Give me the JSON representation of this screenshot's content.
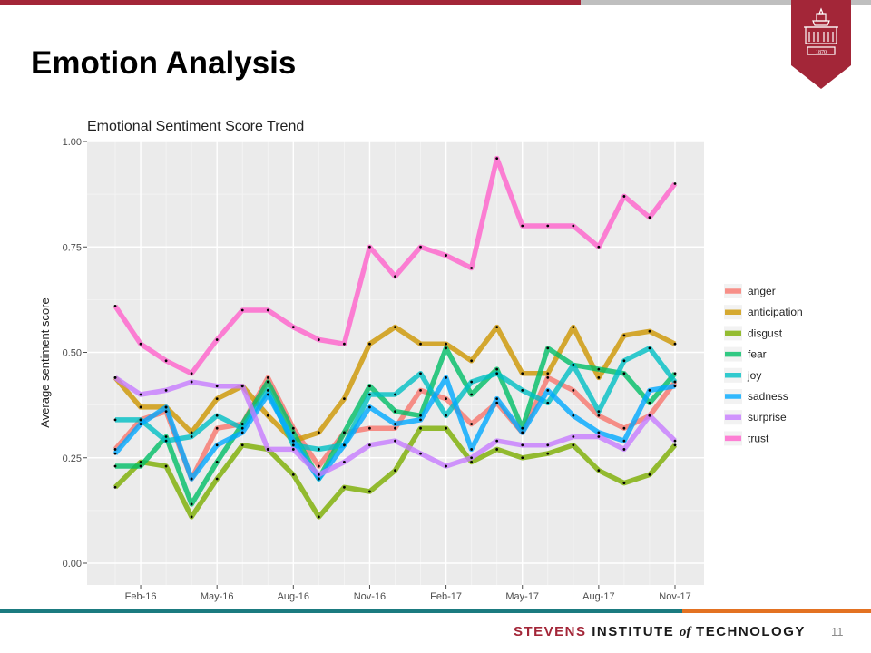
{
  "slide": {
    "title": "Emotion Analysis",
    "page_number": "11",
    "footer": {
      "word1": "STEVENS",
      "word2": "INSTITUTE",
      "word3": "of",
      "word4": "TECHNOLOGY"
    },
    "logo_year": "1870"
  },
  "colors": {
    "accent_red": "#a32638",
    "teal": "#1b7b80",
    "orange": "#e37222",
    "panel": "#ebebeb",
    "grid": "#ffffff"
  },
  "chart_data": {
    "type": "line",
    "title": "Emotional Sentiment Score Trend",
    "xlabel": "",
    "ylabel": "Average sentiment score",
    "ylim": [
      0,
      1
    ],
    "y_ticks": [
      "0.00",
      "0.25",
      "0.50",
      "0.75",
      "1.00"
    ],
    "x_ticks": [
      "Feb-16",
      "May-16",
      "Aug-16",
      "Nov-16",
      "Feb-17",
      "May-17",
      "Aug-17",
      "Nov-17"
    ],
    "x": [
      "2016-01",
      "2016-02",
      "2016-03",
      "2016-04",
      "2016-05",
      "2016-06",
      "2016-07",
      "2016-08",
      "2016-09",
      "2016-10",
      "2016-11",
      "2016-12",
      "2017-01",
      "2017-02",
      "2017-03",
      "2017-04",
      "2017-05",
      "2017-06",
      "2017-07",
      "2017-08",
      "2017-09",
      "2017-10",
      "2017-11"
    ],
    "grid": true,
    "legend_position": "right",
    "series": [
      {
        "name": "anger",
        "color": "#f8766d",
        "values": [
          0.27,
          0.34,
          0.36,
          0.2,
          0.32,
          0.33,
          0.44,
          0.32,
          0.23,
          0.31,
          0.32,
          0.32,
          0.41,
          0.39,
          0.33,
          0.38,
          0.31,
          0.44,
          0.41,
          0.35,
          0.32,
          0.35,
          0.43
        ]
      },
      {
        "name": "anticipation",
        "color": "#cd9600",
        "values": [
          0.44,
          0.37,
          0.37,
          0.31,
          0.39,
          0.42,
          0.35,
          0.29,
          0.31,
          0.39,
          0.52,
          0.56,
          0.52,
          0.52,
          0.48,
          0.56,
          0.45,
          0.45,
          0.56,
          0.44,
          0.54,
          0.55,
          0.52
        ]
      },
      {
        "name": "disgust",
        "color": "#7cae00",
        "values": [
          0.18,
          0.24,
          0.23,
          0.11,
          0.2,
          0.28,
          0.27,
          0.21,
          0.11,
          0.18,
          0.17,
          0.22,
          0.32,
          0.32,
          0.24,
          0.27,
          0.25,
          0.26,
          0.28,
          0.22,
          0.19,
          0.21,
          0.28
        ]
      },
      {
        "name": "fear",
        "color": "#00be67",
        "values": [
          0.23,
          0.23,
          0.3,
          0.14,
          0.24,
          0.33,
          0.43,
          0.31,
          0.2,
          0.31,
          0.42,
          0.36,
          0.35,
          0.51,
          0.4,
          0.46,
          0.32,
          0.51,
          0.47,
          0.46,
          0.45,
          0.38,
          0.45
        ]
      },
      {
        "name": "joy",
        "color": "#00bfc4",
        "values": [
          0.34,
          0.34,
          0.29,
          0.3,
          0.35,
          0.32,
          0.41,
          0.28,
          0.27,
          0.28,
          0.4,
          0.4,
          0.45,
          0.35,
          0.43,
          0.45,
          0.41,
          0.38,
          0.47,
          0.36,
          0.48,
          0.51,
          0.43
        ]
      },
      {
        "name": "sadness",
        "color": "#00a9ff",
        "values": [
          0.26,
          0.33,
          0.37,
          0.2,
          0.28,
          0.31,
          0.4,
          0.29,
          0.2,
          0.28,
          0.37,
          0.33,
          0.34,
          0.44,
          0.27,
          0.39,
          0.31,
          0.41,
          0.35,
          0.31,
          0.29,
          0.41,
          0.42
        ]
      },
      {
        "name": "surprise",
        "color": "#c77cff",
        "values": [
          0.44,
          0.4,
          0.41,
          0.43,
          0.42,
          0.42,
          0.27,
          0.27,
          0.21,
          0.24,
          0.28,
          0.29,
          0.26,
          0.23,
          0.25,
          0.29,
          0.28,
          0.28,
          0.3,
          0.3,
          0.27,
          0.35,
          0.29
        ]
      },
      {
        "name": "trust",
        "color": "#ff61cc",
        "values": [
          0.61,
          0.52,
          0.48,
          0.45,
          0.53,
          0.6,
          0.6,
          0.56,
          0.53,
          0.52,
          0.75,
          0.68,
          0.75,
          0.73,
          0.7,
          0.96,
          0.8,
          0.8,
          0.8,
          0.75,
          0.87,
          0.82,
          0.9
        ]
      }
    ]
  }
}
